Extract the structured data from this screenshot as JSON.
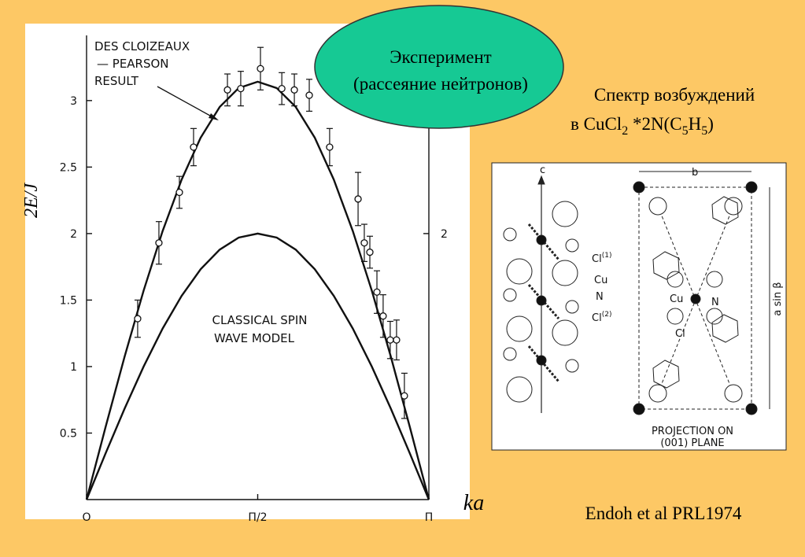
{
  "chart_data": {
    "type": "line-errorbar",
    "y_label": "2E/J",
    "x_label": "ka",
    "annotations": [
      "DES CLOIZEAUX",
      "— PEARSON",
      "RESULT",
      "CLASSICAL SPIN",
      "WAVE MODEL"
    ],
    "xlim": [
      0,
      3.1416
    ],
    "xticks": [
      {
        "value": 0,
        "label": "O"
      },
      {
        "value": 1.5708,
        "label": "Π/2"
      },
      {
        "value": 3.1416,
        "label": "Π"
      }
    ],
    "ylim": [
      0,
      3.49
    ],
    "yticks": [
      0.5,
      1.0,
      1.5,
      2.0,
      2.5,
      3.0
    ],
    "y2lim": [
      0,
      3.49
    ],
    "y2ticks": [
      2
    ],
    "curves_x": [
      0,
      0.1745,
      0.3491,
      0.5236,
      0.6981,
      0.8727,
      1.0472,
      1.2217,
      1.3963,
      1.5708,
      1.7453,
      1.9199,
      2.0944,
      2.2689,
      2.4435,
      2.618,
      2.7925,
      2.9671,
      3.1416
    ],
    "series": [
      {
        "color": "#111111",
        "values": [
          0,
          0.545,
          1.075,
          1.571,
          2.019,
          2.406,
          2.721,
          2.952,
          3.094,
          3.142,
          3.094,
          2.952,
          2.721,
          2.406,
          2.019,
          1.571,
          1.075,
          0.545,
          0
        ]
      },
      {
        "color": "#111111",
        "values": [
          0,
          0.347,
          0.684,
          1,
          1.286,
          1.532,
          1.732,
          1.879,
          1.97,
          2,
          1.97,
          1.879,
          1.732,
          1.532,
          1.286,
          1,
          0.684,
          0.347,
          0
        ]
      }
    ],
    "points": {
      "color": "#111111",
      "x": [
        0.469,
        0.664,
        0.852,
        0.982,
        1.293,
        1.415,
        1.596,
        1.792,
        1.907,
        2.044,
        2.231,
        2.492,
        2.549,
        2.6,
        2.665,
        2.722,
        2.787,
        2.845,
        2.917
      ],
      "values": [
        1.36,
        1.93,
        2.31,
        2.65,
        3.08,
        3.09,
        3.24,
        3.09,
        3.08,
        3.04,
        2.65,
        2.26,
        1.93,
        1.86,
        1.56,
        1.38,
        1.2,
        1.2,
        0.78
      ],
      "errors": [
        0.14,
        0.16,
        0.12,
        0.14,
        0.12,
        0.13,
        0.16,
        0.12,
        0.12,
        0.12,
        0.14,
        0.2,
        0.14,
        0.12,
        0.16,
        0.16,
        0.14,
        0.15,
        0.17
      ]
    }
  },
  "slide": {
    "bubble": [
      "Эксперимент",
      "(рассеяние нейтронов)"
    ],
    "title": "Спектр возбуждений",
    "formula": [
      "в  CuCl",
      "2",
      " *2N(C",
      "5",
      "H",
      "5",
      ")"
    ],
    "citation": "Endoh et al PRL1974"
  },
  "structure_figure": {
    "labels": [
      "c",
      "b",
      "Cl",
      "(1)",
      "Cu",
      "N",
      "Cl",
      "(2)",
      "Cu",
      "N",
      "Cl",
      "a sin β",
      "PROJECTION ON",
      "(001) PLANE"
    ]
  }
}
